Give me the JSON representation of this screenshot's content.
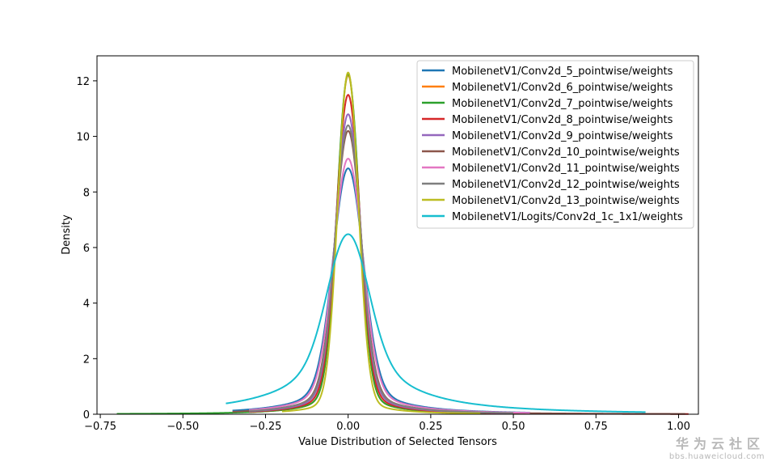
{
  "watermark": {
    "cn": "华为云社区",
    "url": "bbs.huaweicloud.com"
  },
  "chart_data": {
    "type": "line",
    "title": "",
    "xlabel": "Value Distribution of Selected Tensors",
    "ylabel": "Density",
    "xlim": [
      -0.76,
      1.06
    ],
    "ylim": [
      0,
      12.9
    ],
    "xticks": [
      -0.75,
      -0.5,
      -0.25,
      0.0,
      0.25,
      0.5,
      0.75,
      1.0
    ],
    "xtick_labels": [
      "−0.75",
      "−0.50",
      "−0.25",
      "0.00",
      "0.25",
      "0.50",
      "0.75",
      "1.00"
    ],
    "yticks": [
      0,
      2,
      4,
      6,
      8,
      10,
      12
    ],
    "ytick_labels": [
      "0",
      "2",
      "4",
      "6",
      "8",
      "10",
      "12"
    ],
    "grid": false,
    "legend_position": "top-right",
    "series": [
      {
        "name": "MobilenetV1/Conv2d_5_pointwise/weights",
        "color": "#1f77b4",
        "peak": 8.85,
        "sigma": 0.045,
        "tail": 0.13,
        "range": [
          -0.35,
          0.55
        ]
      },
      {
        "name": "MobilenetV1/Conv2d_6_pointwise/weights",
        "color": "#ff7f0e",
        "peak": 12.2,
        "sigma": 0.033,
        "tail": 0.07,
        "range": [
          -0.3,
          0.45
        ]
      },
      {
        "name": "MobilenetV1/Conv2d_7_pointwise/weights",
        "color": "#2ca02c",
        "peak": 12.25,
        "sigma": 0.033,
        "tail": 0.07,
        "range": [
          -0.7,
          0.5
        ]
      },
      {
        "name": "MobilenetV1/Conv2d_8_pointwise/weights",
        "color": "#d62728",
        "peak": 11.5,
        "sigma": 0.035,
        "tail": 0.08,
        "range": [
          -0.3,
          1.03
        ]
      },
      {
        "name": "MobilenetV1/Conv2d_9_pointwise/weights",
        "color": "#9467bd",
        "peak": 10.8,
        "sigma": 0.037,
        "tail": 0.09,
        "range": [
          -0.3,
          0.5
        ]
      },
      {
        "name": "MobilenetV1/Conv2d_10_pointwise/weights",
        "color": "#8c564b",
        "peak": 10.2,
        "sigma": 0.039,
        "tail": 0.1,
        "range": [
          -0.35,
          1.02
        ]
      },
      {
        "name": "MobilenetV1/Conv2d_11_pointwise/weights",
        "color": "#e377c2",
        "peak": 9.2,
        "sigma": 0.043,
        "tail": 0.12,
        "range": [
          -0.3,
          0.55
        ]
      },
      {
        "name": "MobilenetV1/Conv2d_12_pointwise/weights",
        "color": "#7f7f7f",
        "peak": 10.4,
        "sigma": 0.038,
        "tail": 0.1,
        "range": [
          -0.3,
          0.5
        ]
      },
      {
        "name": "MobilenetV1/Conv2d_13_pointwise/weights",
        "color": "#bcbd22",
        "peak": 12.3,
        "sigma": 0.031,
        "tail": 0.05,
        "range": [
          -0.2,
          0.4
        ]
      },
      {
        "name": "MobilenetV1/Logits/Conv2d_1c_1x1/weights",
        "color": "#17becf",
        "peak": 6.48,
        "sigma": 0.06,
        "tail": 0.35,
        "range": [
          -0.37,
          0.9
        ]
      }
    ]
  }
}
